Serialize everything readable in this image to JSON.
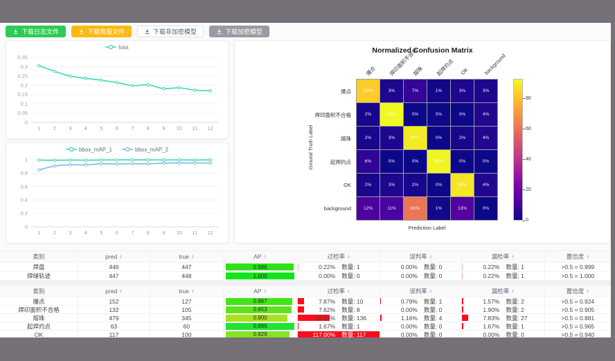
{
  "buttons": [
    {
      "name": "download-log-button",
      "label": "下载日志文件",
      "bg": "#2dcb55",
      "fg": "#ffffff",
      "border": "#2dcb55"
    },
    {
      "name": "download-report-button",
      "label": "下载简报文件",
      "bg": "#fcb912",
      "fg": "#ffffff",
      "border": "#fcb912"
    },
    {
      "name": "download-plain-model-button",
      "label": "下载非加密模型",
      "bg": "#ffffff",
      "fg": "#5a5e66",
      "border": "#dcdfe6"
    },
    {
      "name": "download-encrypted-model-button",
      "label": "下载加密模型",
      "bg": "#9b9aa2",
      "fg": "#ffffff",
      "border": "#9b9aa2"
    }
  ],
  "chart_data": [
    {
      "type": "line",
      "title": "loss",
      "legend_position": "top",
      "x": [
        1,
        2,
        3,
        4,
        5,
        6,
        7,
        8,
        9,
        10,
        11,
        12
      ],
      "series": [
        {
          "name": "loss",
          "color": "#3bd6b2",
          "values": [
            0.305,
            0.275,
            0.25,
            0.237,
            0.227,
            0.215,
            0.198,
            0.202,
            0.182,
            0.186,
            0.174,
            0.17
          ]
        }
      ],
      "ylim": [
        0,
        0.35
      ],
      "yticks": [
        0,
        0.05,
        0.1,
        0.15,
        0.2,
        0.25,
        0.3,
        0.35
      ],
      "grid": true
    },
    {
      "type": "line",
      "title": "bbox_mAP",
      "legend_position": "top",
      "x": [
        1,
        2,
        3,
        4,
        5,
        6,
        7,
        8,
        9,
        10,
        11,
        12
      ],
      "series": [
        {
          "name": "bbox_mAP_1",
          "color": "#3bd6b2",
          "values": [
            0.995,
            0.993,
            0.996,
            0.994,
            0.997,
            0.998,
            0.998,
            0.998,
            0.997,
            0.998,
            0.996,
            0.998
          ]
        },
        {
          "name": "bbox_mAP_2",
          "color": "#74b9f0",
          "values": [
            0.848,
            0.907,
            0.926,
            0.924,
            0.94,
            0.937,
            0.941,
            0.939,
            0.95,
            0.953,
            0.952,
            0.949
          ]
        }
      ],
      "ylim": [
        0,
        1
      ],
      "yticks": [
        0,
        0.2,
        0.4,
        0.6,
        0.8,
        1
      ],
      "grid": true
    },
    {
      "type": "heatmap",
      "title": "Normalized Confusion Matrix",
      "xlabel": "Prediction Label",
      "ylabel": "Ground Truth Label",
      "labels": [
        "爆点",
        "焊印面积不合格",
        "熔珠",
        "起焊灼点",
        "OK",
        "background"
      ],
      "matrix": [
        [
          83,
          3,
          7,
          1,
          3,
          3
        ],
        [
          2,
          93,
          0,
          0,
          0,
          4
        ],
        [
          2,
          3,
          90,
          0,
          2,
          4
        ],
        [
          6,
          0,
          0,
          92,
          0,
          0
        ],
        [
          2,
          3,
          2,
          0,
          89,
          4
        ],
        [
          12,
          11,
          61,
          1,
          13,
          0
        ]
      ],
      "vmax": 93,
      "colorbar_ticks": [
        0,
        20,
        40,
        60,
        80
      ],
      "colormap": "plasma"
    }
  ],
  "tables": {
    "headers": [
      {
        "label": "类别",
        "sortable": false
      },
      {
        "label": "pred",
        "sortable": true
      },
      {
        "label": "true",
        "sortable": true
      },
      {
        "label": "AP",
        "sortable": true
      },
      {
        "label": "过检率",
        "sortable": true
      },
      {
        "label": "误判率",
        "sortable": true
      },
      {
        "label": "漏检率",
        "sortable": true
      },
      {
        "label": "置信度",
        "sortable": true
      }
    ],
    "table1": {
      "rate_bar_color": "#ffaec6",
      "rows": [
        {
          "cls": "焊盘",
          "pred": "446",
          "true": "447",
          "ap": "0.986",
          "ap_w": 98.6,
          "ap_color": "#2ce318",
          "over": {
            "pct": "0.22%",
            "n": "数量: 1",
            "w": 0.22
          },
          "mis": {
            "pct": "0.00%",
            "n": "数量: 0",
            "w": 0
          },
          "miss": {
            "pct": "0.22%",
            "n": "数量: 1",
            "w": 0.22
          },
          "conf": ">0.5 = 0.999"
        },
        {
          "cls": "焊缝轨迹",
          "pred": "447",
          "true": "448",
          "ap": "1.000",
          "ap_w": 100,
          "ap_color": "#12e51c",
          "over": {
            "pct": "0.00%",
            "n": "数量: 0",
            "w": 0
          },
          "mis": {
            "pct": "0.00%",
            "n": "数量: 0",
            "w": 0
          },
          "miss": {
            "pct": "0.22%",
            "n": "数量: 1",
            "w": 0.22
          },
          "conf": ">0.5 = 1.000"
        }
      ]
    },
    "table2": {
      "rate_bar_color": "#fb0d1e",
      "rows": [
        {
          "cls": "爆点",
          "pred": "152",
          "true": "127",
          "ap": "0.967",
          "ap_w": 96.7,
          "ap_color": "#44e41c",
          "over": {
            "pct": "7.87%",
            "n": "数量: 10",
            "w": 7.87
          },
          "mis": {
            "pct": "0.79%",
            "n": "数量: 1",
            "w": 0.79
          },
          "miss": {
            "pct": "1.57%",
            "n": "数量: 2",
            "w": 1.57
          },
          "conf": ">0.5 = 0.924"
        },
        {
          "cls": "焊印面积不合格",
          "pred": "132",
          "true": "105",
          "ap": "0.953",
          "ap_w": 95.3,
          "ap_color": "#60e31e",
          "over": {
            "pct": "7.62%",
            "n": "数量: 8",
            "w": 7.62
          },
          "mis": {
            "pct": "0.00%",
            "n": "数量: 0",
            "w": 0
          },
          "miss": {
            "pct": "1.90%",
            "n": "数量: 2",
            "w": 1.9
          },
          "conf": ">0.5 = 0.905"
        },
        {
          "cls": "熔珠",
          "pred": "479",
          "true": "345",
          "ap": "0.900",
          "ap_w": 90,
          "ap_color": "#a9e21f",
          "over": {
            "pct": "39.42%",
            "n": "数量: 136",
            "w": 39.42
          },
          "mis": {
            "pct": "1.16%",
            "n": "数量: 4",
            "w": 1.16
          },
          "miss": {
            "pct": "7.83%",
            "n": "数量: 27",
            "w": 7.83
          },
          "conf": ">0.5 = 0.881"
        },
        {
          "cls": "起焊灼点",
          "pred": "63",
          "true": "60",
          "ap": "0.996",
          "ap_w": 99.6,
          "ap_color": "#1fe437",
          "over": {
            "pct": "1.67%",
            "n": "数量: 1",
            "w": 1.67
          },
          "mis": {
            "pct": "0.00%",
            "n": "数量: 0",
            "w": 0
          },
          "miss": {
            "pct": "1.67%",
            "n": "数量: 1",
            "w": 1.67
          },
          "conf": ">0.5 = 0.965"
        },
        {
          "cls": "OK",
          "pred": "117",
          "true": "100",
          "ap": "0.929",
          "ap_w": 92.9,
          "ap_color": "#86e324",
          "over": {
            "pct": "117.00%",
            "n": "数量: 117",
            "w": 117
          },
          "mis": {
            "pct": "0.00%",
            "n": "数量: 0",
            "w": 0
          },
          "miss": {
            "pct": "0.00%",
            "n": "数量: 0",
            "w": 0
          },
          "conf": ">0.5 = 0.940"
        }
      ]
    }
  }
}
